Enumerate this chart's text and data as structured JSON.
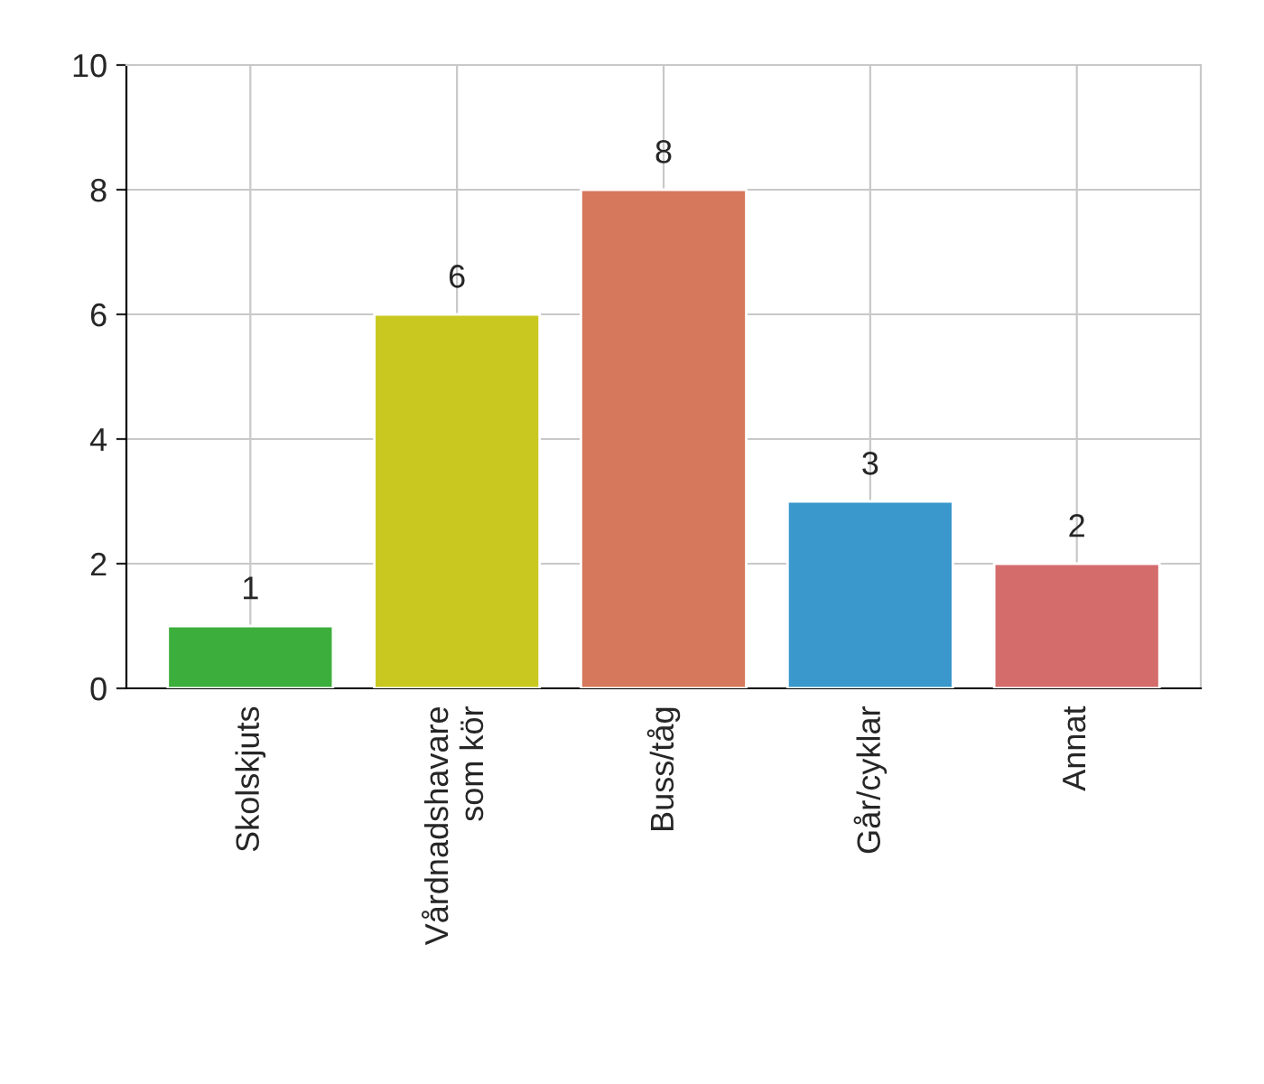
{
  "chart_data": {
    "type": "bar",
    "categories": [
      "Skolskjuts",
      "Vårdnadshavare\nsom kör",
      "Buss/tåg",
      "Går/cyklar",
      "Annat"
    ],
    "values": [
      1,
      6,
      8,
      3,
      2
    ],
    "colors": [
      "#3cae3c",
      "#c8c820",
      "#d6785c",
      "#3a98cc",
      "#d46c6c"
    ],
    "ylim": [
      0,
      10
    ],
    "yticks": [
      0,
      2,
      4,
      6,
      8,
      10
    ],
    "grid": true,
    "data_labels": true
  }
}
